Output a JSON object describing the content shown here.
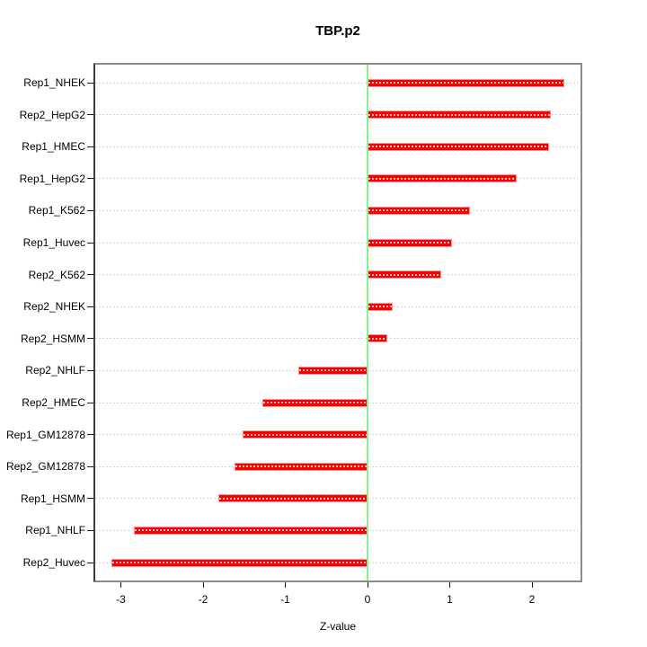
{
  "chart_data": {
    "type": "bar",
    "orientation": "horizontal",
    "title": "TBP.p2",
    "xlabel": "Z-value",
    "ylabel": "",
    "categories": [
      "Rep1_NHEK",
      "Rep2_HepG2",
      "Rep1_HMEC",
      "Rep1_HepG2",
      "Rep1_K562",
      "Rep1_Huvec",
      "Rep2_K562",
      "Rep2_NHEK",
      "Rep2_HSMM",
      "Rep2_NHLF",
      "Rep2_HMEC",
      "Rep1_GM12878",
      "Rep2_GM12878",
      "Rep1_HSMM",
      "Rep1_NHLF",
      "Rep2_Huvec"
    ],
    "values": [
      2.39,
      2.23,
      2.21,
      1.81,
      1.25,
      1.03,
      0.9,
      0.31,
      0.24,
      -0.84,
      -1.28,
      -1.52,
      -1.62,
      -1.81,
      -2.84,
      -3.12
    ],
    "x_ticks": [
      -3,
      -2,
      -1,
      0,
      1,
      2
    ],
    "xlim": [
      -3.33,
      2.61
    ],
    "grid": "dotted horizontal line per category",
    "legend": "none",
    "colors": {
      "bar": "#f70000",
      "bar_edge": "#ff8f8f",
      "zero_line": "#90ee90",
      "gridline": "#d9d9d9",
      "box_border": "#8c8c8c",
      "axis": "#1a1a1a"
    }
  }
}
